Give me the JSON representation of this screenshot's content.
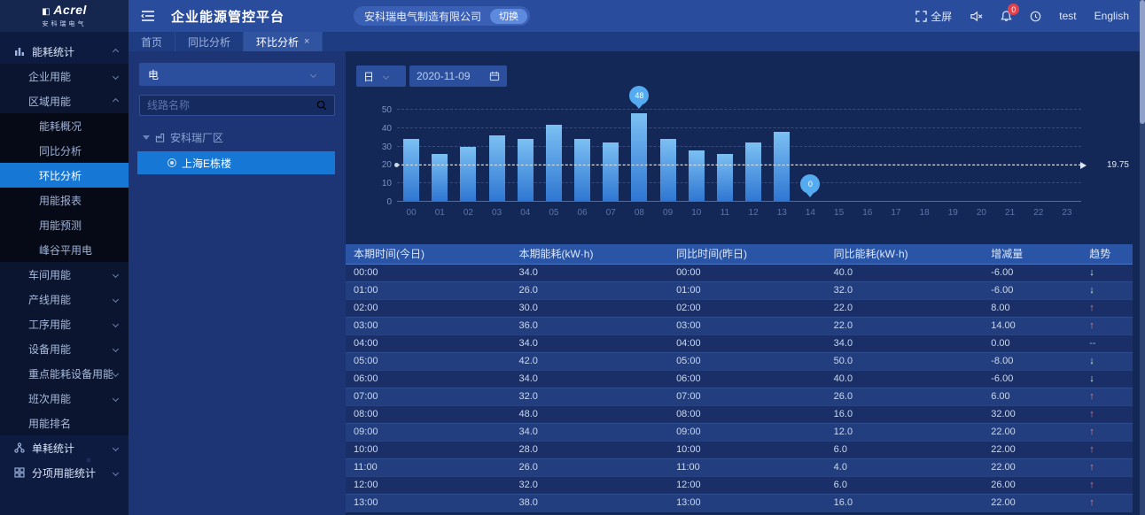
{
  "logo": {
    "brand": "Acrel",
    "subtitle": "安科瑞电气"
  },
  "header": {
    "title": "企业能源管控平台",
    "company": "安科瑞电气制造有限公司",
    "switch_label": "切换",
    "fullscreen_label": "全屏",
    "notification_badge": "0",
    "username": "test",
    "language": "English"
  },
  "icons": {
    "close": "×"
  },
  "tabs": [
    {
      "label": "首页",
      "active": false,
      "closable": false
    },
    {
      "label": "同比分析",
      "active": false,
      "closable": false
    },
    {
      "label": "环比分析",
      "active": true,
      "closable": true
    }
  ],
  "sidebar": {
    "items": [
      {
        "label": "能耗统计",
        "level": 0,
        "icon": "bar-chart",
        "caret": "up"
      },
      {
        "label": "企业用能",
        "level": 1,
        "caret": "down"
      },
      {
        "label": "区域用能",
        "level": 1,
        "caret": "up"
      },
      {
        "label": "能耗概况",
        "level": 2
      },
      {
        "label": "同比分析",
        "level": 2
      },
      {
        "label": "环比分析",
        "level": 2,
        "active": true
      },
      {
        "label": "用能报表",
        "level": 2
      },
      {
        "label": "用能预测",
        "level": 2
      },
      {
        "label": "峰谷平用电",
        "level": 2
      },
      {
        "label": "车间用能",
        "level": 1,
        "caret": "down"
      },
      {
        "label": "产线用能",
        "level": 1,
        "caret": "down"
      },
      {
        "label": "工序用能",
        "level": 1,
        "caret": "down"
      },
      {
        "label": "设备用能",
        "level": 1,
        "caret": "down"
      },
      {
        "label": "重点能耗设备用能",
        "level": 1,
        "caret": "down"
      },
      {
        "label": "班次用能",
        "level": 1,
        "caret": "down"
      },
      {
        "label": "用能排名",
        "level": 1
      },
      {
        "label": "单耗统计",
        "level": 0,
        "icon": "nodes",
        "caret": "down"
      },
      {
        "label": "分项用能统计",
        "level": 0,
        "icon": "grid",
        "caret": "down"
      }
    ]
  },
  "tree": {
    "energy_type": "电",
    "search_placeholder": "线路名称",
    "root_label": "安科瑞厂区",
    "leaf_label": "上海E栋楼"
  },
  "toolbar": {
    "period": "日",
    "date": "2020-11-09"
  },
  "chart_data": {
    "type": "bar",
    "x": [
      "00",
      "01",
      "02",
      "03",
      "04",
      "05",
      "06",
      "07",
      "08",
      "09",
      "10",
      "11",
      "12",
      "13",
      "14",
      "15",
      "16",
      "17",
      "18",
      "19",
      "20",
      "21",
      "22",
      "23"
    ],
    "values": [
      34,
      26,
      30,
      36,
      34,
      42,
      34,
      32,
      48,
      34,
      28,
      26,
      32,
      38,
      0,
      0,
      0,
      0,
      0,
      0,
      0,
      0,
      0,
      0
    ],
    "title": "",
    "xlabel": "",
    "ylabel": "",
    "ylim": [
      0,
      50
    ],
    "yticks": [
      0,
      10,
      20,
      30,
      40,
      50
    ],
    "grid": true,
    "legend_position": "none",
    "average_line": 19.75,
    "average_label": "19.75",
    "markers": [
      {
        "index": 8,
        "label": "48"
      },
      {
        "index": 14,
        "label": "0"
      }
    ],
    "bar_color_top": "#7cc0f3",
    "bar_color_bottom": "#2e76d2"
  },
  "table": {
    "headers": [
      "本期时间(今日)",
      "本期能耗(kW·h)",
      "同比时间(昨日)",
      "同比能耗(kW·h)",
      "增减量",
      "趋势"
    ],
    "col_widths": [
      "21%",
      "20%",
      "20%",
      "20%",
      "12.5%",
      "6.5%"
    ],
    "trend_glyphs": {
      "up": "↑",
      "down": "↓",
      "flat": "--"
    },
    "rows": [
      {
        "time": "00:00",
        "energy": "34.0",
        "cmp_time": "00:00",
        "cmp_energy": "40.0",
        "delta": "-6.00",
        "trend": "down"
      },
      {
        "time": "01:00",
        "energy": "26.0",
        "cmp_time": "01:00",
        "cmp_energy": "32.0",
        "delta": "-6.00",
        "trend": "down"
      },
      {
        "time": "02:00",
        "energy": "30.0",
        "cmp_time": "02:00",
        "cmp_energy": "22.0",
        "delta": "8.00",
        "trend": "up"
      },
      {
        "time": "03:00",
        "energy": "36.0",
        "cmp_time": "03:00",
        "cmp_energy": "22.0",
        "delta": "14.00",
        "trend": "up"
      },
      {
        "time": "04:00",
        "energy": "34.0",
        "cmp_time": "04:00",
        "cmp_energy": "34.0",
        "delta": "0.00",
        "trend": "flat"
      },
      {
        "time": "05:00",
        "energy": "42.0",
        "cmp_time": "05:00",
        "cmp_energy": "50.0",
        "delta": "-8.00",
        "trend": "down"
      },
      {
        "time": "06:00",
        "energy": "34.0",
        "cmp_time": "06:00",
        "cmp_energy": "40.0",
        "delta": "-6.00",
        "trend": "down"
      },
      {
        "time": "07:00",
        "energy": "32.0",
        "cmp_time": "07:00",
        "cmp_energy": "26.0",
        "delta": "6.00",
        "trend": "up"
      },
      {
        "time": "08:00",
        "energy": "48.0",
        "cmp_time": "08:00",
        "cmp_energy": "16.0",
        "delta": "32.00",
        "trend": "up"
      },
      {
        "time": "09:00",
        "energy": "34.0",
        "cmp_time": "09:00",
        "cmp_energy": "12.0",
        "delta": "22.00",
        "trend": "up"
      },
      {
        "time": "10:00",
        "energy": "28.0",
        "cmp_time": "10:00",
        "cmp_energy": "6.0",
        "delta": "22.00",
        "trend": "up"
      },
      {
        "time": "11:00",
        "energy": "26.0",
        "cmp_time": "11:00",
        "cmp_energy": "4.0",
        "delta": "22.00",
        "trend": "up"
      },
      {
        "time": "12:00",
        "energy": "32.0",
        "cmp_time": "12:00",
        "cmp_energy": "6.0",
        "delta": "26.00",
        "trend": "up"
      },
      {
        "time": "13:00",
        "energy": "38.0",
        "cmp_time": "13:00",
        "cmp_energy": "16.0",
        "delta": "22.00",
        "trend": "up"
      }
    ]
  }
}
